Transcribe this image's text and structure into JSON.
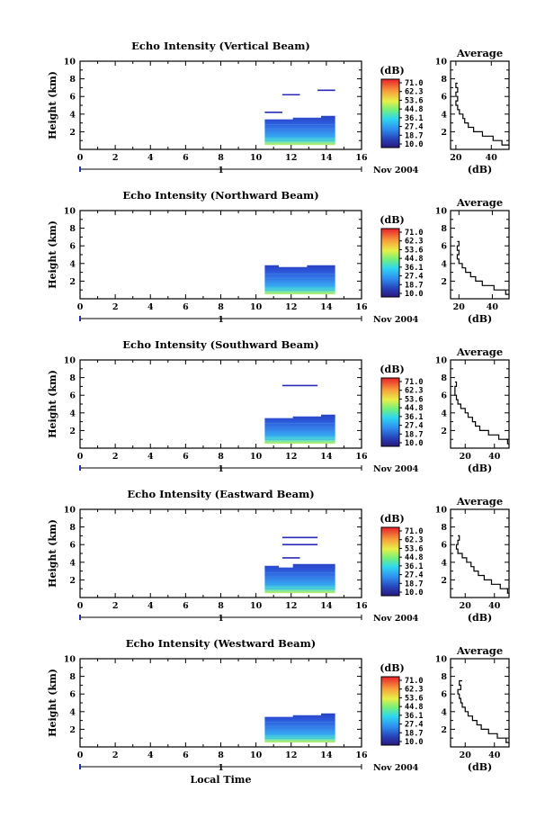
{
  "xlabel": "Local Time",
  "date_label": "Nov 2004",
  "day_marker": "1",
  "colorbar_unit": "(dB)",
  "colorbar_labels": [
    "71.0",
    "62.3",
    "53.6",
    "44.8",
    "36.1",
    "27.4",
    "18.7",
    "10.0"
  ],
  "avg_title": "Average",
  "avg_xlabel": "(dB)",
  "chart_data": [
    {
      "type": "heatmap",
      "title": "Echo Intensity (Vertical Beam)",
      "xlabel": "",
      "ylabel": "Height (km)",
      "xlim": [
        0,
        16
      ],
      "ylim": [
        0,
        10
      ],
      "xticks": [
        0,
        2,
        4,
        6,
        8,
        10,
        12,
        14,
        16
      ],
      "yticks": [
        2,
        4,
        6,
        8,
        10
      ],
      "color_range_db": [
        10.0,
        71.0
      ],
      "data_block": {
        "x": [
          10.5,
          14.5
        ],
        "y_top": [
          3.4,
          3.4,
          3.6,
          3.6,
          3.8
        ],
        "y_bottom": 0.5
      },
      "features": [
        {
          "x": [
            10.5,
            11.5
          ],
          "y": 4.2,
          "db": 12
        },
        {
          "x": [
            11.5,
            12.5
          ],
          "y": 6.2,
          "db": 12
        },
        {
          "x": [
            13.5,
            14.5
          ],
          "y": 6.7,
          "db": 12
        }
      ],
      "average_profile": {
        "xlim": [
          17,
          50
        ],
        "xticks": [
          20,
          40
        ],
        "height_km": [
          0.5,
          1.0,
          1.5,
          2.0,
          2.5,
          3.0,
          3.5,
          4.0,
          4.5,
          5.0,
          5.5,
          6.0,
          6.5,
          7.0,
          7.5
        ],
        "db": [
          46,
          41,
          35,
          30,
          27,
          25,
          24,
          22,
          21,
          20,
          21,
          20,
          21,
          20,
          21
        ]
      }
    },
    {
      "type": "heatmap",
      "title": "Echo Intensity (Northward Beam)",
      "xlabel": "",
      "ylabel": "Height (km)",
      "xlim": [
        0,
        16
      ],
      "ylim": [
        0,
        10
      ],
      "xticks": [
        0,
        2,
        4,
        6,
        8,
        10,
        12,
        14,
        16
      ],
      "yticks": [
        2,
        4,
        6,
        8,
        10
      ],
      "color_range_db": [
        10.0,
        71.0
      ],
      "data_block": {
        "x": [
          10.5,
          14.5
        ],
        "y_top": [
          3.8,
          3.6,
          3.6,
          3.8,
          3.8
        ],
        "y_bottom": 0.5
      },
      "features": [],
      "average_profile": {
        "xlim": [
          15,
          50
        ],
        "xticks": [
          20,
          40
        ],
        "height_km": [
          0.5,
          1.0,
          1.5,
          2.0,
          2.5,
          3.0,
          3.5,
          4.0,
          4.5,
          5.0,
          5.5,
          6.0,
          6.5
        ],
        "db": [
          48,
          41,
          34,
          30,
          27,
          24,
          22,
          20,
          19,
          20,
          19,
          20,
          19
        ]
      }
    },
    {
      "type": "heatmap",
      "title": "Echo Intensity (Southward Beam)",
      "xlabel": "",
      "ylabel": "Height (km)",
      "xlim": [
        0,
        16
      ],
      "ylim": [
        0,
        10
      ],
      "xticks": [
        0,
        2,
        4,
        6,
        8,
        10,
        12,
        14,
        16
      ],
      "yticks": [
        2,
        4,
        6,
        8,
        10
      ],
      "color_range_db": [
        10.0,
        71.0
      ],
      "data_block": {
        "x": [
          10.5,
          14.5
        ],
        "y_top": [
          3.4,
          3.4,
          3.6,
          3.6,
          3.8
        ],
        "y_bottom": 0.5
      },
      "features": [
        {
          "x": [
            11.5,
            13.5
          ],
          "y": 7.1,
          "db": 12
        }
      ],
      "average_profile": {
        "xlim": [
          10,
          50
        ],
        "xticks": [
          20,
          40
        ],
        "height_km": [
          0.5,
          1.0,
          1.5,
          2.0,
          2.5,
          3.0,
          3.5,
          4.0,
          4.5,
          5.0,
          5.5,
          6.0,
          6.5,
          7.0,
          7.5
        ],
        "db": [
          49,
          43,
          36,
          30,
          27,
          25,
          22,
          20,
          17,
          15,
          14,
          13,
          13,
          14,
          13
        ]
      }
    },
    {
      "type": "heatmap",
      "title": "Echo Intensity (Eastward Beam)",
      "xlabel": "",
      "ylabel": "Height (km)",
      "xlim": [
        0,
        16
      ],
      "ylim": [
        0,
        10
      ],
      "xticks": [
        0,
        2,
        4,
        6,
        8,
        10,
        12,
        14,
        16
      ],
      "yticks": [
        2,
        4,
        6,
        8,
        10
      ],
      "color_range_db": [
        10.0,
        71.0
      ],
      "data_block": {
        "x": [
          10.5,
          14.5
        ],
        "y_top": [
          3.6,
          3.4,
          3.8,
          3.8,
          3.8
        ],
        "y_bottom": 0.5
      },
      "features": [
        {
          "x": [
            11.5,
            12.5
          ],
          "y": 4.5,
          "db": 12
        },
        {
          "x": [
            11.5,
            13.5
          ],
          "y": 6.0,
          "db": 12
        },
        {
          "x": [
            11.5,
            13.5
          ],
          "y": 6.8,
          "db": 12
        }
      ],
      "average_profile": {
        "xlim": [
          10,
          50
        ],
        "xticks": [
          20,
          40
        ],
        "height_km": [
          0.5,
          1.0,
          1.5,
          2.0,
          2.5,
          3.0,
          3.5,
          4.0,
          4.5,
          5.0,
          5.5,
          6.0,
          6.5,
          7.0
        ],
        "db": [
          49,
          44,
          38,
          33,
          29,
          26,
          24,
          21,
          18,
          15,
          14,
          15,
          16,
          15
        ]
      }
    },
    {
      "type": "heatmap",
      "title": "Echo Intensity (Westward Beam)",
      "xlabel": "Local Time",
      "ylabel": "Height (km)",
      "xlim": [
        0,
        16
      ],
      "ylim": [
        0,
        10
      ],
      "xticks": [
        0,
        2,
        4,
        6,
        8,
        10,
        12,
        14,
        16
      ],
      "yticks": [
        2,
        4,
        6,
        8,
        10
      ],
      "color_range_db": [
        10.0,
        71.0
      ],
      "data_block": {
        "x": [
          10.5,
          14.5
        ],
        "y_top": [
          3.4,
          3.4,
          3.6,
          3.6,
          3.8
        ],
        "y_bottom": 0.5
      },
      "features": [],
      "average_profile": {
        "xlim": [
          10,
          50
        ],
        "xticks": [
          20,
          40
        ],
        "height_km": [
          0.5,
          1.0,
          1.5,
          2.0,
          2.5,
          3.0,
          3.5,
          4.0,
          4.5,
          5.0,
          5.5,
          6.0,
          6.5,
          7.0,
          7.5
        ],
        "db": [
          48,
          42,
          36,
          31,
          28,
          25,
          22,
          20,
          18,
          17,
          16,
          15,
          17,
          16,
          18
        ]
      }
    }
  ]
}
